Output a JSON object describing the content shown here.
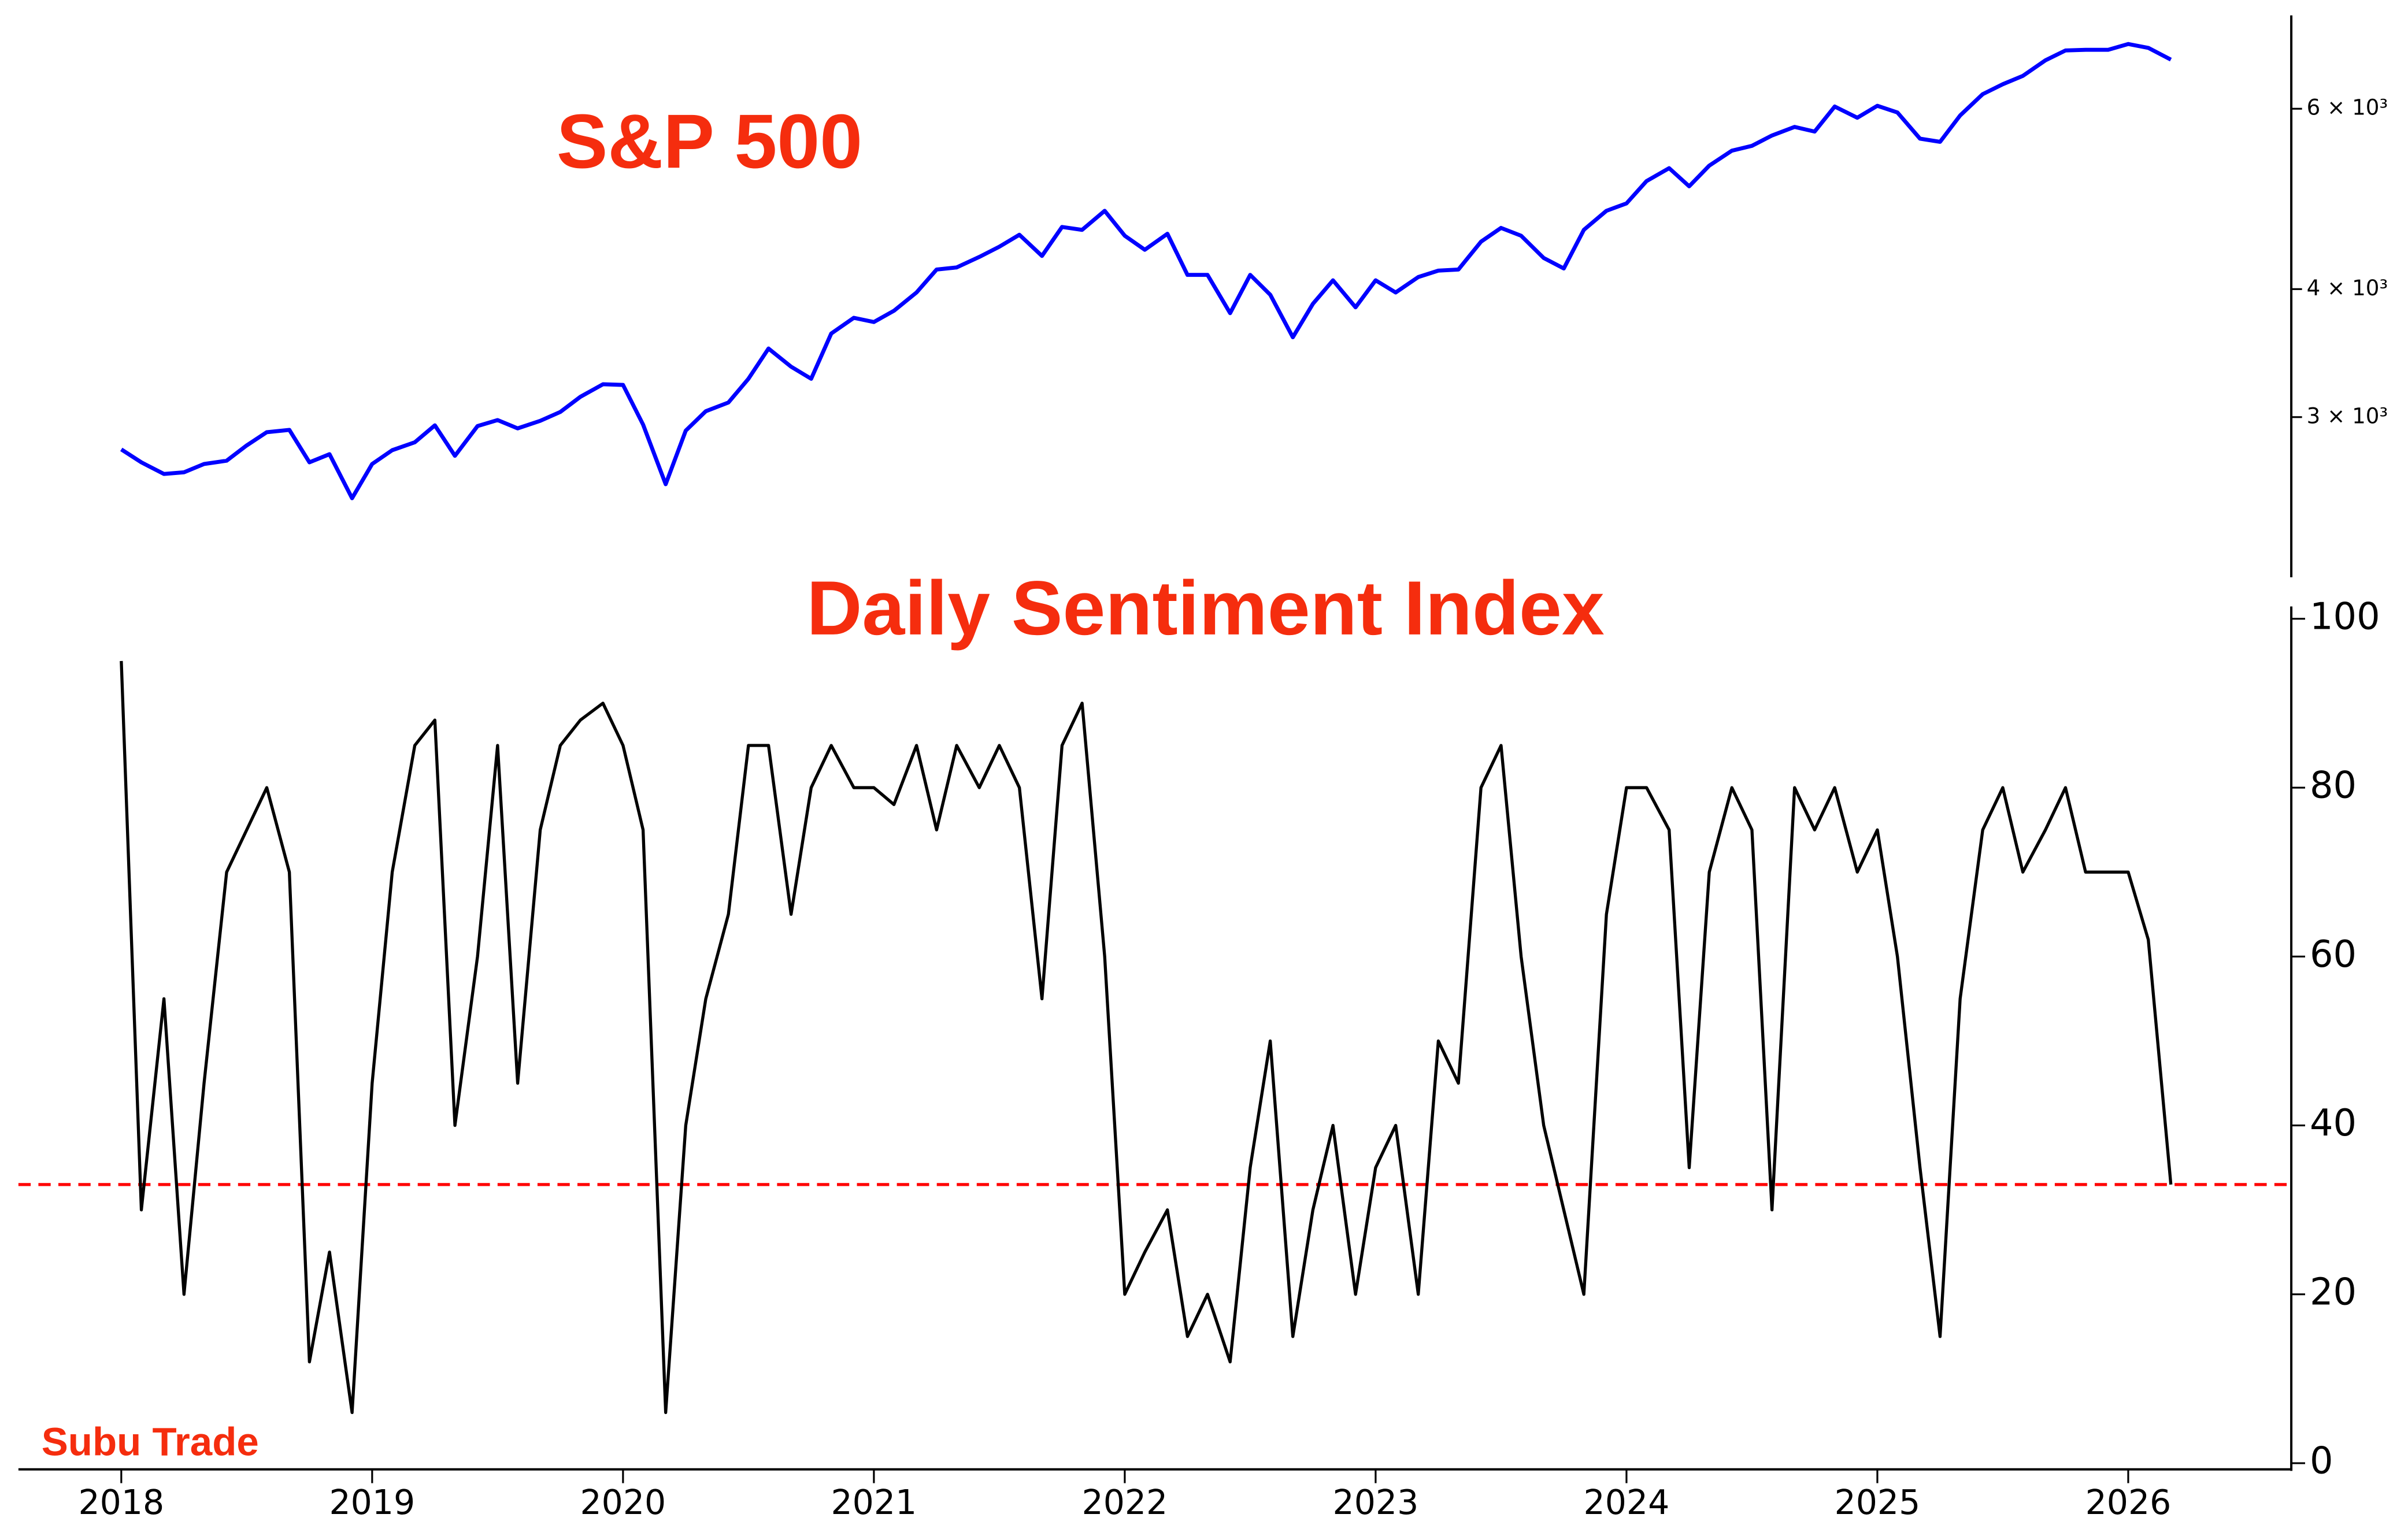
{
  "chart_data": [
    {
      "type": "line",
      "title": "S&P 500",
      "log": true,
      "color": "#0000ff",
      "x": [
        2018.0,
        2018.08,
        2018.17,
        2018.25,
        2018.33,
        2018.42,
        2018.5,
        2018.58,
        2018.67,
        2018.75,
        2018.83,
        2018.92,
        2019.0,
        2019.08,
        2019.17,
        2019.25,
        2019.33,
        2019.42,
        2019.5,
        2019.58,
        2019.67,
        2019.75,
        2019.83,
        2019.92,
        2020.0,
        2020.08,
        2020.17,
        2020.25,
        2020.33,
        2020.42,
        2020.5,
        2020.58,
        2020.67,
        2020.75,
        2020.83,
        2020.92,
        2021.0,
        2021.08,
        2021.17,
        2021.25,
        2021.33,
        2021.42,
        2021.5,
        2021.58,
        2021.67,
        2021.75,
        2021.83,
        2021.92,
        2022.0,
        2022.08,
        2022.17,
        2022.25,
        2022.33,
        2022.42,
        2022.5,
        2022.58,
        2022.67,
        2022.75,
        2022.83,
        2022.92,
        2023.0,
        2023.08,
        2023.17,
        2023.25,
        2023.33,
        2023.42,
        2023.5,
        2023.58,
        2023.67,
        2023.75,
        2023.83,
        2023.92,
        2024.0,
        2024.08,
        2024.17,
        2024.25,
        2024.33,
        2024.42,
        2024.5,
        2024.58,
        2024.67,
        2024.75,
        2024.83,
        2024.92,
        2025.0,
        2025.08,
        2025.17,
        2025.25,
        2025.33,
        2025.42,
        2025.5,
        2025.58,
        2025.67,
        2025.75,
        2025.83,
        2025.92,
        2026.0,
        2026.08,
        2026.17
      ],
      "values": [
        2790,
        2710,
        2640,
        2650,
        2700,
        2720,
        2815,
        2900,
        2915,
        2710,
        2760,
        2500,
        2700,
        2785,
        2835,
        2945,
        2750,
        2940,
        2980,
        2925,
        2975,
        3035,
        3140,
        3230,
        3225,
        2950,
        2580,
        2910,
        3040,
        3100,
        3270,
        3500,
        3360,
        3270,
        3620,
        3750,
        3715,
        3810,
        3970,
        4180,
        4200,
        4300,
        4400,
        4520,
        4310,
        4600,
        4570,
        4770,
        4510,
        4370,
        4530,
        4130,
        4130,
        3790,
        4130,
        3950,
        3590,
        3870,
        4080,
        3840,
        4080,
        3970,
        4110,
        4170,
        4180,
        4450,
        4590,
        4510,
        4290,
        4190,
        4570,
        4770,
        4850,
        5100,
        5250,
        5040,
        5280,
        5460,
        5520,
        5650,
        5760,
        5700,
        6030,
        5880,
        6040,
        5950,
        5610,
        5570,
        5910,
        6200,
        6340,
        6460,
        6690,
        6840,
        6850,
        6850,
        6940,
        6880,
        6700
      ],
      "xlim": [
        2017.59,
        2026.65
      ],
      "ylim": [
        2100,
        7350
      ],
      "yticks": [
        {
          "value": 3000,
          "label": "3 × 10³"
        },
        {
          "value": 4000,
          "label": "4 × 10³"
        },
        {
          "value": 6000,
          "label": "6 × 10³"
        }
      ]
    },
    {
      "type": "line",
      "title": "Daily Sentiment Index",
      "color": "#000000",
      "annotation": "Subu Trade",
      "hline": 33,
      "hline_color": "#ff0000",
      "x": [
        2018.0,
        2018.08,
        2018.17,
        2018.25,
        2018.33,
        2018.42,
        2018.5,
        2018.58,
        2018.67,
        2018.75,
        2018.83,
        2018.92,
        2019.0,
        2019.08,
        2019.17,
        2019.25,
        2019.33,
        2019.42,
        2019.5,
        2019.58,
        2019.67,
        2019.75,
        2019.83,
        2019.92,
        2020.0,
        2020.08,
        2020.17,
        2020.25,
        2020.33,
        2020.42,
        2020.5,
        2020.58,
        2020.67,
        2020.75,
        2020.83,
        2020.92,
        2021.0,
        2021.08,
        2021.17,
        2021.25,
        2021.33,
        2021.42,
        2021.5,
        2021.58,
        2021.67,
        2021.75,
        2021.83,
        2021.92,
        2022.0,
        2022.08,
        2022.17,
        2022.25,
        2022.33,
        2022.42,
        2022.5,
        2022.58,
        2022.67,
        2022.75,
        2022.83,
        2022.92,
        2023.0,
        2023.08,
        2023.17,
        2023.25,
        2023.33,
        2023.42,
        2023.5,
        2023.58,
        2023.67,
        2023.75,
        2023.83,
        2023.92,
        2024.0,
        2024.08,
        2024.17,
        2024.25,
        2024.33,
        2024.42,
        2024.5,
        2024.58,
        2024.67,
        2024.75,
        2024.83,
        2024.92,
        2025.0,
        2025.08,
        2025.17,
        2025.25,
        2025.33,
        2025.42,
        2025.5,
        2025.58,
        2025.67,
        2025.75,
        2025.83,
        2025.92,
        2026.0,
        2026.08,
        2026.17
      ],
      "values": [
        95,
        30,
        55,
        20,
        45,
        70,
        75,
        80,
        70,
        12,
        25,
        6,
        45,
        70,
        85,
        88,
        40,
        60,
        85,
        45,
        75,
        85,
        88,
        90,
        85,
        75,
        6,
        40,
        55,
        65,
        85,
        85,
        65,
        80,
        85,
        80,
        80,
        78,
        85,
        75,
        85,
        80,
        85,
        80,
        55,
        85,
        90,
        60,
        20,
        25,
        30,
        15,
        20,
        12,
        35,
        50,
        15,
        30,
        40,
        20,
        35,
        40,
        20,
        50,
        45,
        80,
        85,
        60,
        40,
        30,
        20,
        65,
        80,
        80,
        75,
        35,
        70,
        80,
        75,
        30,
        80,
        75,
        80,
        70,
        75,
        60,
        35,
        15,
        55,
        75,
        80,
        70,
        75,
        80,
        70,
        70,
        70,
        62,
        33
      ],
      "xlim": [
        2017.59,
        2026.65
      ],
      "ylim": [
        0,
        100
      ],
      "xticks": [
        2018,
        2019,
        2020,
        2021,
        2022,
        2023,
        2024,
        2025,
        2026
      ],
      "yticks": [
        0,
        20,
        40,
        60,
        80,
        100
      ]
    }
  ]
}
